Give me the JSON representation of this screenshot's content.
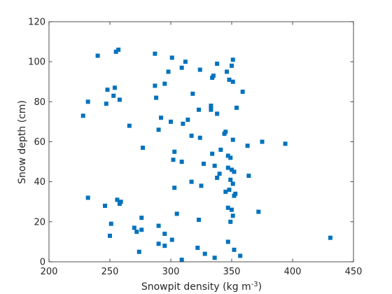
{
  "chart_data": {
    "type": "scatter",
    "title": "",
    "xlabel": "Snowpit density (kg m",
    "xlabel_superscript": "-3",
    "xlabel_suffix": ")",
    "ylabel": "Snow depth (cm)",
    "xlim": [
      200,
      450
    ],
    "ylim": [
      0,
      120
    ],
    "xticks": [
      200,
      250,
      300,
      350,
      400,
      450
    ],
    "yticks": [
      0,
      20,
      40,
      60,
      80,
      100,
      120
    ],
    "grid": false,
    "legend": "none",
    "marker": "square",
    "marker_color": "#0072BD",
    "series": [
      {
        "points": [
          [
            240,
            103
          ],
          [
            255,
            105
          ],
          [
            257,
            106
          ],
          [
            287,
            104
          ],
          [
            301,
            102
          ],
          [
            312,
            100
          ],
          [
            351,
            101
          ],
          [
            350,
            98
          ],
          [
            338,
            99
          ],
          [
            324,
            96
          ],
          [
            309,
            97
          ],
          [
            298,
            95
          ],
          [
            346,
            95
          ],
          [
            335,
            93
          ],
          [
            334,
            92
          ],
          [
            348,
            91
          ],
          [
            351,
            90
          ],
          [
            287,
            88
          ],
          [
            295,
            89
          ],
          [
            248,
            86
          ],
          [
            254,
            87
          ],
          [
            253,
            83
          ],
          [
            288,
            82
          ],
          [
            258,
            81
          ],
          [
            247,
            79
          ],
          [
            232,
            80
          ],
          [
            318,
            84
          ],
          [
            359,
            85
          ],
          [
            333,
            78
          ],
          [
            323,
            76
          ],
          [
            333,
            76
          ],
          [
            338,
            74
          ],
          [
            354,
            77
          ],
          [
            228,
            73
          ],
          [
            292,
            72
          ],
          [
            314,
            71
          ],
          [
            310,
            69
          ],
          [
            300,
            70
          ],
          [
            266,
            68
          ],
          [
            290,
            66
          ],
          [
            317,
            63
          ],
          [
            324,
            62
          ],
          [
            345,
            65
          ],
          [
            344,
            64
          ],
          [
            351,
            61
          ],
          [
            375,
            60
          ],
          [
            394,
            59
          ],
          [
            363,
            58
          ],
          [
            277,
            57
          ],
          [
            341,
            56
          ],
          [
            303,
            55
          ],
          [
            334,
            54
          ],
          [
            347,
            53
          ],
          [
            349,
            52
          ],
          [
            302,
            51
          ],
          [
            309,
            50
          ],
          [
            327,
            49
          ],
          [
            336,
            48
          ],
          [
            347,
            47
          ],
          [
            350,
            46
          ],
          [
            352,
            45
          ],
          [
            340,
            44
          ],
          [
            364,
            43
          ],
          [
            338,
            42
          ],
          [
            349,
            41
          ],
          [
            317,
            40
          ],
          [
            351,
            39
          ],
          [
            325,
            38
          ],
          [
            303,
            37
          ],
          [
            348,
            36
          ],
          [
            345,
            35
          ],
          [
            353,
            34
          ],
          [
            352,
            33
          ],
          [
            232,
            32
          ],
          [
            256,
            31
          ],
          [
            259,
            30
          ],
          [
            258,
            29
          ],
          [
            246,
            28
          ],
          [
            347,
            27
          ],
          [
            350,
            26
          ],
          [
            372,
            25
          ],
          [
            305,
            24
          ],
          [
            351,
            23
          ],
          [
            276,
            22
          ],
          [
            323,
            21
          ],
          [
            349,
            20
          ],
          [
            251,
            19
          ],
          [
            290,
            18
          ],
          [
            270,
            17
          ],
          [
            276,
            16
          ],
          [
            272,
            15
          ],
          [
            295,
            14
          ],
          [
            250,
            13
          ],
          [
            431,
            12
          ],
          [
            301,
            11
          ],
          [
            347,
            10
          ],
          [
            290,
            9
          ],
          [
            295,
            8
          ],
          [
            322,
            7
          ],
          [
            352,
            6
          ],
          [
            274,
            5
          ],
          [
            328,
            4
          ],
          [
            357,
            3
          ],
          [
            336,
            2
          ],
          [
            309,
            1
          ]
        ]
      }
    ]
  }
}
